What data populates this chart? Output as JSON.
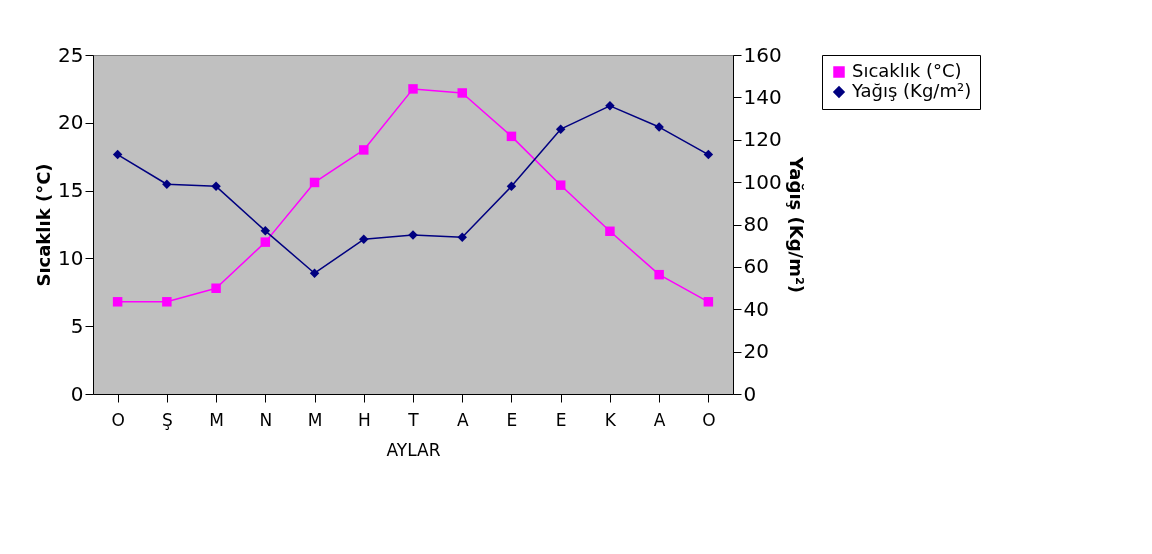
{
  "chart_data": {
    "type": "line",
    "xlabel": "AYLAR",
    "ylabel": "Sıcaklık (°C)",
    "y2label": "Yağış (Kg/m²)",
    "categories": [
      "O",
      "Ş",
      "M",
      "N",
      "M",
      "H",
      "T",
      "A",
      "E",
      "E",
      "K",
      "A",
      "O"
    ],
    "series": [
      {
        "name": "Sıcaklık (°C)",
        "color": "#ff00ff",
        "marker": "square",
        "values": [
          6.8,
          6.8,
          7.8,
          11.2,
          15.6,
          18.0,
          22.5,
          22.2,
          19.0,
          15.4,
          12.0,
          8.8,
          6.8
        ]
      },
      {
        "name": "Yağış (Kg/m²)",
        "color": "#000080",
        "marker": "diamond",
        "axis": "y2",
        "values": [
          113,
          99,
          98,
          77,
          57,
          73,
          75,
          74,
          98,
          125,
          136,
          126,
          113
        ]
      }
    ],
    "ylim": [
      0,
      25
    ],
    "yticks": [
      0,
      5,
      10,
      15,
      20,
      25
    ],
    "y2lim": [
      0,
      160
    ],
    "y2ticks": [
      0,
      20,
      40,
      60,
      80,
      100,
      120,
      140,
      160
    ],
    "grid": false,
    "legend": "right"
  }
}
